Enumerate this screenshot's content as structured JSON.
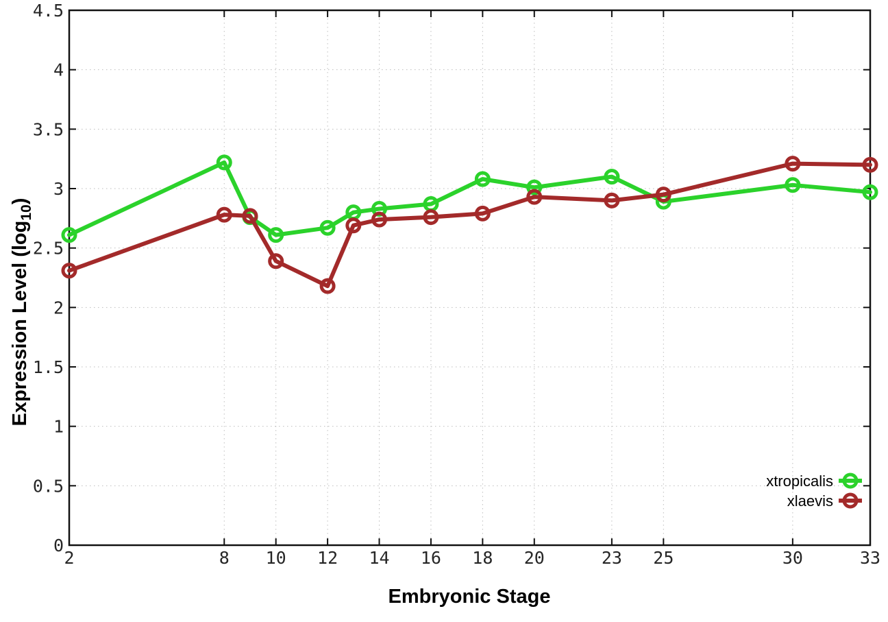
{
  "page": {
    "background": "#ffffff"
  },
  "chart_data": {
    "type": "line",
    "title": "",
    "xlabel": "Embryonic Stage",
    "ylabel": "Expression Level (log10)",
    "ylabel_parts": {
      "prefix": "Expression Level (log",
      "sub": "10",
      "suffix": ")"
    },
    "xlim": [
      2,
      33
    ],
    "ylim": [
      0,
      4.5
    ],
    "xticks": [
      2,
      8,
      10,
      12,
      14,
      16,
      18,
      20,
      23,
      25,
      30,
      33
    ],
    "yticks": [
      0,
      0.5,
      1,
      1.5,
      2,
      2.5,
      3,
      3.5,
      4,
      4.5
    ],
    "ytick_labels": [
      "0",
      "0.5",
      "1",
      "1.5",
      "2",
      "2.5",
      "3",
      "3.5",
      "4",
      "4.5"
    ],
    "grid": true,
    "legend_position": "inside-bottom-right",
    "marker": "open-circle",
    "x": [
      2,
      8,
      9,
      10,
      12,
      13,
      14,
      16,
      18,
      20,
      23,
      25,
      30,
      33
    ],
    "series": [
      {
        "name": "xtropicalis",
        "color": "#2bd22b",
        "values": [
          2.61,
          3.22,
          2.76,
          2.61,
          2.67,
          2.8,
          2.83,
          2.87,
          3.08,
          3.01,
          3.1,
          2.89,
          3.03,
          2.97
        ]
      },
      {
        "name": "xlaevis",
        "color": "#a32a2a",
        "values": [
          2.31,
          2.78,
          2.77,
          2.39,
          2.18,
          2.69,
          2.74,
          2.76,
          2.79,
          2.93,
          2.9,
          2.95,
          3.21,
          3.2
        ]
      }
    ],
    "colors": {
      "axis": "#111111",
      "grid": "#bdbdbd",
      "tick_text": "#262626",
      "title_text": "#000000"
    }
  }
}
